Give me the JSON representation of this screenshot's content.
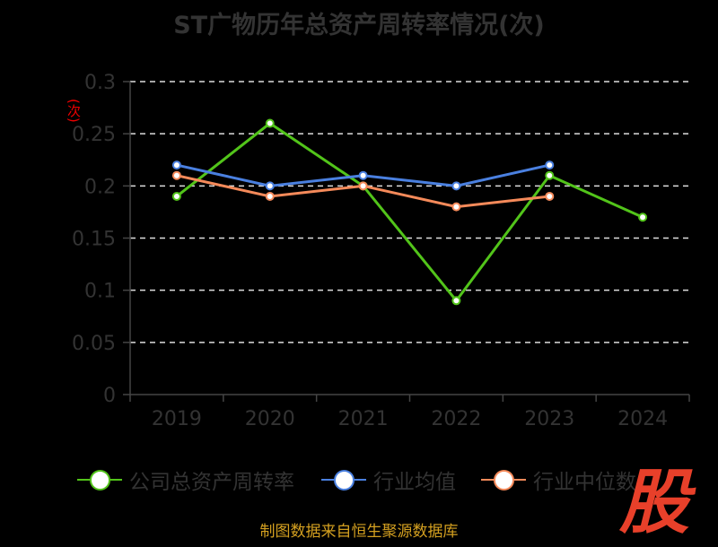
{
  "chart_data": {
    "type": "line",
    "title": "ST广物历年总资产周转率情况(次)",
    "ylabel": "(次)",
    "categories": [
      "2019",
      "2020",
      "2021",
      "2022",
      "2023",
      "2024"
    ],
    "ylim": [
      0,
      0.3
    ],
    "yticks": [
      "0",
      "0.05",
      "0.1",
      "0.15",
      "0.2",
      "0.25",
      "0.3"
    ],
    "grid": true,
    "legend_position": "bottom",
    "series": [
      {
        "name": "公司总资产周转率",
        "color": "#52c41a",
        "values": [
          0.19,
          0.26,
          0.2,
          0.09,
          0.21,
          0.17
        ]
      },
      {
        "name": "行业均值",
        "color": "#4a80e0",
        "values": [
          0.22,
          0.2,
          0.21,
          0.2,
          0.22,
          null
        ]
      },
      {
        "name": "行业中位数",
        "color": "#f58a5a",
        "values": [
          0.21,
          0.19,
          0.2,
          0.18,
          0.19,
          null
        ]
      }
    ]
  },
  "source": "制图数据来自恒生聚源数据库",
  "logo_text": "股"
}
